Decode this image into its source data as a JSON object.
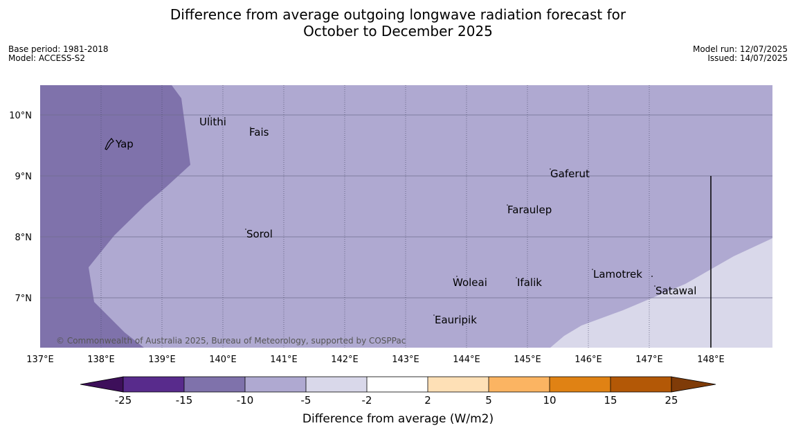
{
  "title": {
    "line1": "Difference from average outgoing longwave radiation forecast for",
    "line2": "October to December 2025"
  },
  "meta": {
    "base_period": "Base period: 1981-2018",
    "model": "Model: ACCESS-S2",
    "model_run": "Model run: 12/07/2025",
    "issued": "Issued: 14/07/2025"
  },
  "map": {
    "lon_ticks": [
      "137°E",
      "138°E",
      "139°E",
      "140°E",
      "141°E",
      "142°E",
      "143°E",
      "144°E",
      "145°E",
      "146°E",
      "147°E",
      "148°E"
    ],
    "lat_ticks": [
      "10°N",
      "9°N",
      "8°N",
      "7°N"
    ],
    "places": [
      {
        "name": "Yap"
      },
      {
        "name": "Ulithi"
      },
      {
        "name": "Fais"
      },
      {
        "name": "Gaferut"
      },
      {
        "name": "Faraulep"
      },
      {
        "name": "Sorol"
      },
      {
        "name": "Lamotrek"
      },
      {
        "name": "Woleai"
      },
      {
        "name": "Ifalik"
      },
      {
        "name": "Satawal"
      },
      {
        "name": "Eauripik"
      }
    ],
    "copyright": "© Commonwealth of Australia 2025, Bureau of Meteorology, supported by COSPPac"
  },
  "colorbar": {
    "label": "Difference from average (W/m2)",
    "ticks": [
      "-25",
      "-15",
      "-10",
      "-5",
      "-2",
      "2",
      "5",
      "10",
      "15",
      "25"
    ],
    "colors": [
      "#3d0f5a",
      "#582b8c",
      "#7f72ab",
      "#afa9d1",
      "#d9d8ea",
      "#ffffff",
      "#fee0b6",
      "#fbb462",
      "#e08214",
      "#b35806",
      "#7f3b08"
    ]
  },
  "shading_colors": {
    "band_-15_-10": "#7f72ab",
    "band_-10_-5": "#afa9d1",
    "band_-5_-2": "#d9d8ea"
  }
}
